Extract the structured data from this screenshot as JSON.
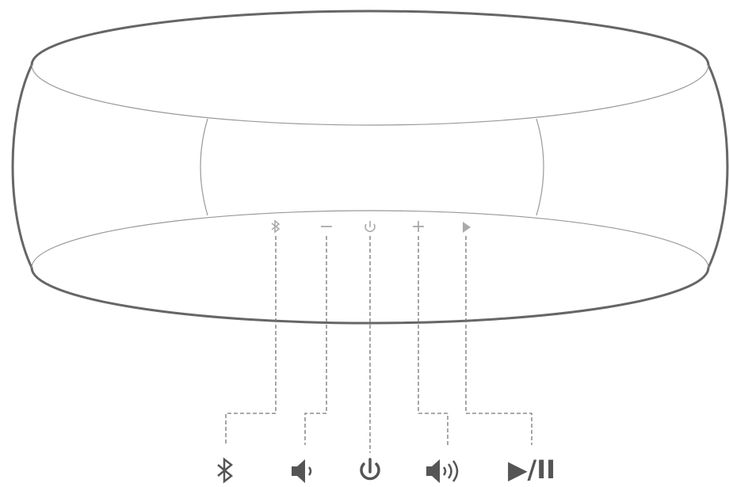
{
  "top_buttons": [
    "−",
    "+"
  ],
  "play_pause_label": "▶/II"
}
